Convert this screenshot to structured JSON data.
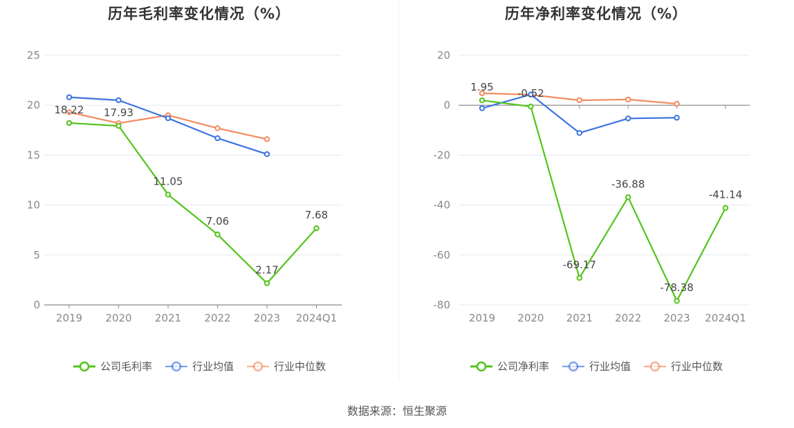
{
  "source_text": "数据来源：恒生聚源",
  "colors": {
    "company": "#52c41a",
    "industry_avg": "#3b73e0",
    "industry_median": "#f48a5f",
    "grid": "#e3e8f2",
    "axis": "#888888"
  },
  "chart_data": [
    {
      "type": "line",
      "title": "历年毛利率变化情况（%）",
      "categories": [
        "2019",
        "2020",
        "2021",
        "2022",
        "2023",
        "2024Q1"
      ],
      "ylim": [
        0,
        25
      ],
      "yticks": [
        0,
        5,
        10,
        15,
        20,
        25
      ],
      "grid": true,
      "legend_position": "bottom",
      "series": [
        {
          "name": "公司毛利率",
          "key": "company",
          "values": [
            18.22,
            17.93,
            11.05,
            7.06,
            2.17,
            7.68
          ],
          "labels": [
            "18.22",
            "17.93",
            "11.05",
            "7.06",
            "2.17",
            "7.68"
          ],
          "label_pos": [
            "above",
            "above",
            "above",
            "above",
            "above",
            "above"
          ]
        },
        {
          "name": "行业均值",
          "key": "industry_avg",
          "values": [
            20.8,
            20.5,
            18.7,
            16.7,
            15.1,
            null
          ]
        },
        {
          "name": "行业中位数",
          "key": "industry_median",
          "values": [
            19.3,
            18.2,
            19.0,
            17.7,
            16.6,
            null
          ]
        }
      ]
    },
    {
      "type": "line",
      "title": "历年净利率变化情况（%）",
      "categories": [
        "2019",
        "2020",
        "2021",
        "2022",
        "2023",
        "2024Q1"
      ],
      "ylim": [
        -80,
        20
      ],
      "yticks": [
        -80,
        -60,
        -40,
        -20,
        0,
        20
      ],
      "grid": true,
      "legend_position": "bottom",
      "series": [
        {
          "name": "公司净利率",
          "key": "company",
          "values": [
            1.95,
            -0.52,
            -69.17,
            -36.88,
            -78.38,
            -41.14
          ],
          "labels": [
            "1.95",
            "-0.52",
            "-69.17",
            "-36.88",
            "-78.38",
            "-41.14"
          ],
          "label_pos": [
            "above",
            "above",
            "below",
            "above",
            "below",
            "above"
          ]
        },
        {
          "name": "行业均值",
          "key": "industry_avg",
          "values": [
            -1.2,
            4.3,
            -11.1,
            -5.3,
            -5.0,
            null
          ]
        },
        {
          "name": "行业中位数",
          "key": "industry_median",
          "values": [
            4.8,
            4.2,
            2.0,
            2.3,
            0.6,
            null
          ]
        }
      ]
    }
  ]
}
